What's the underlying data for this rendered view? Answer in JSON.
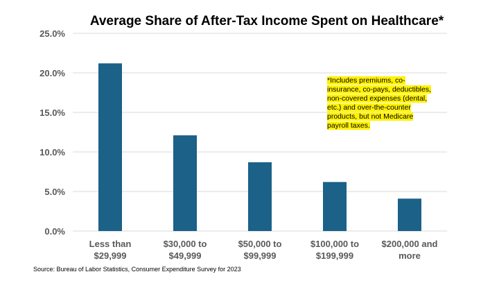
{
  "chart_data": {
    "type": "bar",
    "title": "Average Share of After-Tax Income Spent on Healthcare*",
    "categories": [
      [
        "Less than",
        "$29,999"
      ],
      [
        "$30,000 to",
        "$49,999"
      ],
      [
        "$50,000 to",
        "$99,999"
      ],
      [
        "$100,000 to",
        "$199,999"
      ],
      [
        "$200,000 and",
        "more"
      ]
    ],
    "values": [
      21.2,
      12.1,
      8.7,
      6.2,
      4.1
    ],
    "ylim": [
      0,
      25
    ],
    "yticks": [
      "0.0%",
      "5.0%",
      "10.0%",
      "15.0%",
      "20.0%",
      "25.0%"
    ],
    "ytick_values": [
      0,
      5,
      10,
      15,
      20,
      25
    ],
    "grid": true,
    "color": "#1b6188",
    "xlabel": "",
    "ylabel": ""
  },
  "note": "*Includes premiums, co-insurance, co-pays, deductibles, non-covered expenses (dental, etc.) and over-the-counter products, but not Medicare payroll taxes.",
  "source": "Source: Bureau of Labor Statistics, Consumer Expenditure Survey for 2023"
}
